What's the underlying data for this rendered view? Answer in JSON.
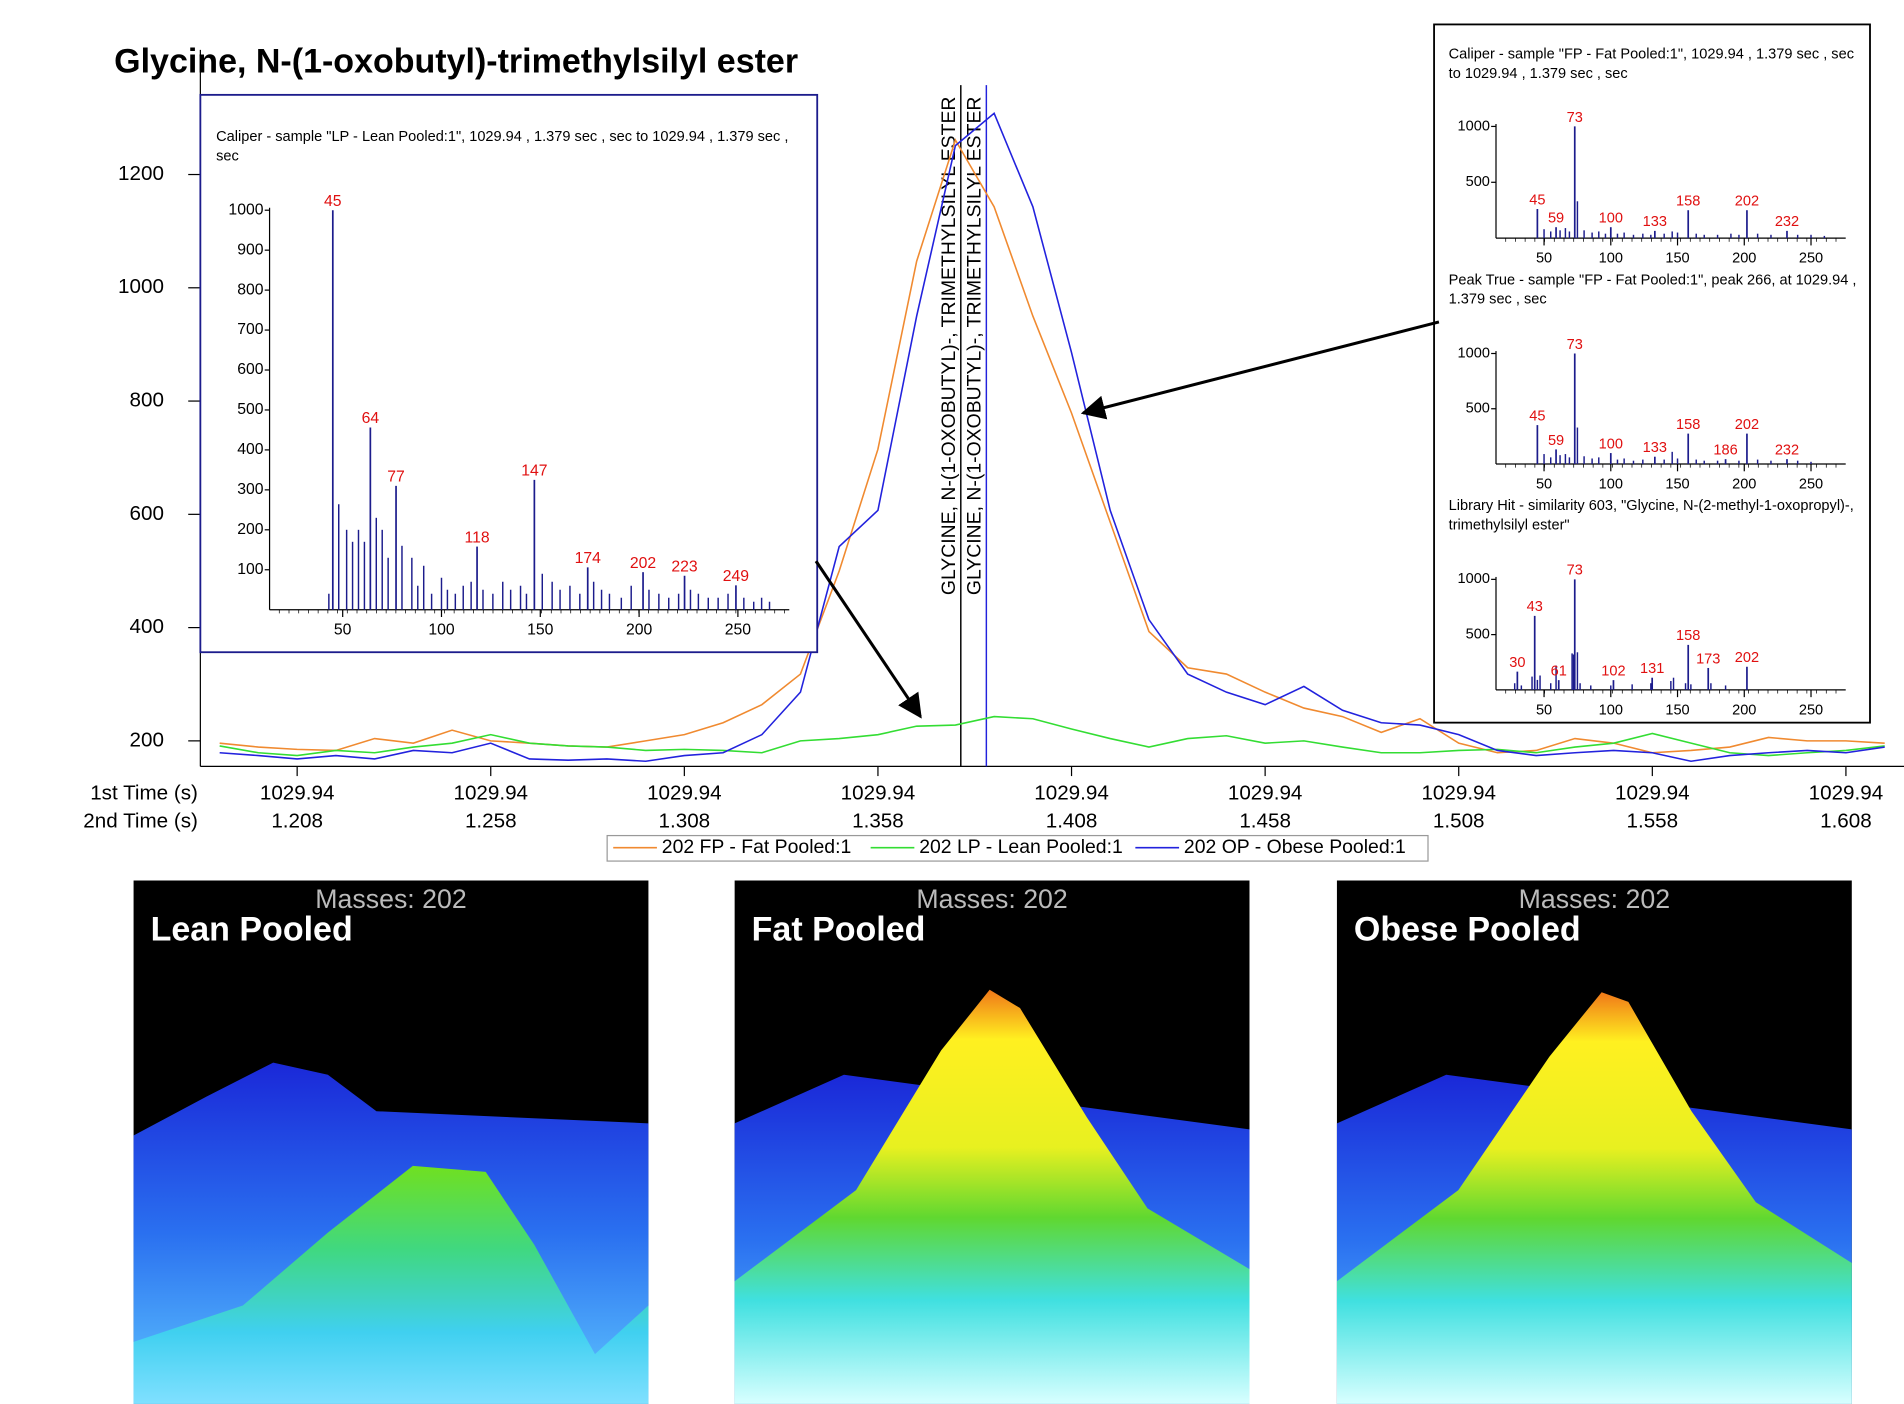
{
  "title": "Glycine, N-(1-oxobutyl)-trimethylsilyl ester",
  "chart_data": [
    {
      "type": "line",
      "x": [
        1.188,
        1.198,
        1.208,
        1.218,
        1.228,
        1.238,
        1.248,
        1.258,
        1.268,
        1.278,
        1.288,
        1.298,
        1.308,
        1.318,
        1.328,
        1.338,
        1.348,
        1.358,
        1.368,
        1.378,
        1.388,
        1.398,
        1.408,
        1.418,
        1.428,
        1.438,
        1.448,
        1.458,
        1.468,
        1.478,
        1.488,
        1.498,
        1.508,
        1.518,
        1.528,
        1.538,
        1.548,
        1.558,
        1.568,
        1.578,
        1.588,
        1.598,
        1.608,
        1.618
      ],
      "xlim": [
        1.183,
        1.623
      ],
      "xticks": [
        1.208,
        1.258,
        1.308,
        1.358,
        1.408,
        1.458,
        1.508,
        1.558,
        1.608
      ],
      "first_time_labels": [
        "1029.94",
        "1029.94",
        "1029.94",
        "1029.94",
        "1029.94",
        "1029.94",
        "1029.94",
        "1029.94",
        "1029.94"
      ],
      "xlabel_first": "1st Time (s)",
      "xlabel_second": "2nd Time (s)",
      "ylim": [
        155,
        1420
      ],
      "yticks": [
        200,
        400,
        600,
        800,
        1000,
        1200
      ],
      "legend": "bottom",
      "series": [
        {
          "name": "202 FP - Fat Pooled:1",
          "color": "#f08a30",
          "values": [
            196,
            189,
            185,
            183,
            204,
            196,
            219,
            200,
            196,
            191,
            189,
            200,
            211,
            232,
            264,
            318,
            500,
            715,
            1047,
            1261,
            1143,
            950,
            779,
            586,
            393,
            329,
            318,
            286,
            258,
            243,
            215,
            239,
            196,
            179,
            183,
            204,
            196,
            179,
            183,
            189,
            206,
            200,
            200,
            196
          ]
        },
        {
          "name": "202 LP - Lean Pooled:1",
          "color": "#33dd33",
          "values": [
            191,
            179,
            174,
            183,
            179,
            189,
            196,
            211,
            196,
            191,
            189,
            183,
            185,
            183,
            179,
            200,
            204,
            211,
            226,
            228,
            243,
            239,
            221,
            204,
            189,
            204,
            209,
            196,
            200,
            189,
            179,
            179,
            183,
            185,
            179,
            189,
            196,
            213,
            196,
            179,
            174,
            179,
            183,
            191
          ]
        },
        {
          "name": "202 OP - Obese Pooled:1",
          "color": "#2222dd",
          "values": [
            179,
            174,
            168,
            174,
            168,
            183,
            179,
            196,
            168,
            166,
            168,
            164,
            174,
            179,
            211,
            286,
            543,
            607,
            950,
            1251,
            1308,
            1143,
            886,
            607,
            414,
            318,
            286,
            264,
            296,
            254,
            232,
            228,
            211,
            183,
            174,
            179,
            183,
            179,
            164,
            174,
            179,
            183,
            179,
            189
          ]
        }
      ],
      "markers": [
        {
          "x": 1.3794,
          "label": "GLYCINE, N-(1-OXOBUTYL)-, TRIMETHYLSILYL ESTER",
          "color": "#000000"
        },
        {
          "x": 1.386,
          "label": "GLYCINE, N-(1-OXOBUTYL)-, TRIMETHYLSILYL ESTER",
          "color": "#2222dd"
        }
      ]
    },
    {
      "type": "stem",
      "title": "Caliper - sample \"LP - Lean Pooled:1\", 1029.94 , 1.379 sec , sec to 1029.94 , 1.379 sec , sec",
      "color": "#1c1c8c",
      "label_color": "#e01010",
      "x": [
        45,
        64,
        77,
        118,
        147,
        174,
        202,
        223,
        249
      ],
      "values": [
        1000,
        456,
        310,
        158,
        325,
        106,
        94,
        85,
        61
      ],
      "minor_x": [
        43,
        48,
        52,
        55,
        58,
        61,
        67,
        70,
        73,
        80,
        85,
        88,
        91,
        95,
        100,
        103,
        107,
        111,
        115,
        121,
        126,
        131,
        135,
        140,
        143,
        151,
        156,
        160,
        165,
        170,
        177,
        181,
        185,
        191,
        196,
        205,
        210,
        215,
        220,
        226,
        230,
        235,
        240,
        245,
        253,
        258,
        262,
        266
      ],
      "minor_values": [
        40,
        264,
        200,
        170,
        200,
        170,
        230,
        200,
        130,
        160,
        130,
        60,
        110,
        40,
        80,
        50,
        40,
        60,
        70,
        50,
        40,
        70,
        50,
        60,
        40,
        90,
        70,
        50,
        60,
        40,
        70,
        50,
        40,
        30,
        60,
        50,
        40,
        30,
        40,
        50,
        40,
        30,
        30,
        40,
        30,
        20,
        30,
        20
      ],
      "xlim": [
        13,
        276
      ],
      "xticks": [
        50,
        100,
        150,
        200,
        250
      ],
      "ylim": [
        0,
        1000
      ],
      "yticks": [
        100,
        200,
        300,
        400,
        500,
        600,
        700,
        800,
        900,
        1000
      ]
    },
    {
      "type": "stem",
      "title": "Caliper - sample \"FP - Fat Pooled:1\", 1029.94 , 1.379 sec , sec to 1029.94 , 1.379 sec , sec",
      "color": "#1c1c8c",
      "label_color": "#e01010",
      "x": [
        45,
        59,
        73,
        100,
        133,
        158,
        202,
        232
      ],
      "values": [
        261,
        98,
        1000,
        98,
        65,
        250,
        250,
        65
      ],
      "minor_x": [
        50,
        55,
        62,
        66,
        69,
        75,
        80,
        86,
        91,
        96,
        105,
        110,
        117,
        124,
        130,
        140,
        146,
        150,
        164,
        170,
        180,
        190,
        196,
        210,
        220,
        240,
        250,
        260
      ],
      "minor_values": [
        80,
        60,
        70,
        90,
        60,
        330,
        70,
        50,
        60,
        40,
        40,
        50,
        30,
        40,
        30,
        40,
        60,
        50,
        40,
        30,
        30,
        40,
        30,
        40,
        30,
        30,
        30,
        20
      ],
      "xlim": [
        14,
        276
      ],
      "xticks": [
        50,
        100,
        150,
        200,
        250
      ],
      "ylim": [
        0,
        1000
      ],
      "yticks": [
        500,
        1000
      ]
    },
    {
      "type": "stem",
      "title": "Peak True - sample \"FP - Fat Pooled:1\", peak 266, at 1029.94 , 1.379 sec , sec",
      "color": "#1c1c8c",
      "label_color": "#e01010",
      "x": [
        45,
        59,
        73,
        100,
        133,
        158,
        186,
        202,
        232
      ],
      "values": [
        352,
        132,
        1000,
        99,
        66,
        275,
        44,
        275,
        44
      ],
      "minor_x": [
        50,
        55,
        62,
        66,
        69,
        75,
        80,
        86,
        91,
        105,
        110,
        117,
        124,
        140,
        146,
        150,
        164,
        170,
        180,
        196,
        210,
        220,
        240,
        250
      ],
      "minor_values": [
        90,
        60,
        80,
        90,
        60,
        330,
        70,
        50,
        60,
        40,
        50,
        30,
        40,
        40,
        110,
        50,
        40,
        30,
        30,
        30,
        40,
        30,
        30,
        20
      ],
      "xlim": [
        14,
        276
      ],
      "xticks": [
        50,
        100,
        150,
        200,
        250
      ],
      "ylim": [
        0,
        1000
      ],
      "yticks": [
        500,
        1000
      ]
    },
    {
      "type": "stem",
      "title": "Library Hit - similarity 603, \"Glycine, N-(2-methyl-1-oxopropyl)-, trimethylsilyl ester\"",
      "color": "#1c1c8c",
      "label_color": "#e01010",
      "x": [
        30,
        43,
        61,
        73,
        102,
        131,
        158,
        173,
        202
      ],
      "values": [
        165,
        670,
        88,
        1000,
        88,
        110,
        407,
        198,
        209
      ],
      "minor_x": [
        28,
        33,
        41,
        45,
        47,
        55,
        59,
        71,
        72,
        75,
        77,
        85,
        100,
        116,
        130,
        145,
        147,
        156,
        160,
        175,
        186
      ],
      "minor_values": [
        60,
        40,
        120,
        90,
        130,
        60,
        220,
        330,
        320,
        340,
        60,
        40,
        40,
        50,
        60,
        80,
        110,
        60,
        50,
        60,
        40
      ],
      "xlim": [
        14,
        276
      ],
      "xticks": [
        50,
        100,
        150,
        200,
        250
      ],
      "ylim": [
        0,
        1000
      ],
      "yticks": [
        500,
        1000
      ]
    }
  ],
  "surface_panels": [
    {
      "title": "Lean Pooled",
      "caption": "Masses: 202"
    },
    {
      "title": "Fat Pooled",
      "caption": "Masses: 202"
    },
    {
      "title": "Obese Pooled",
      "caption": "Masses: 202"
    }
  ]
}
